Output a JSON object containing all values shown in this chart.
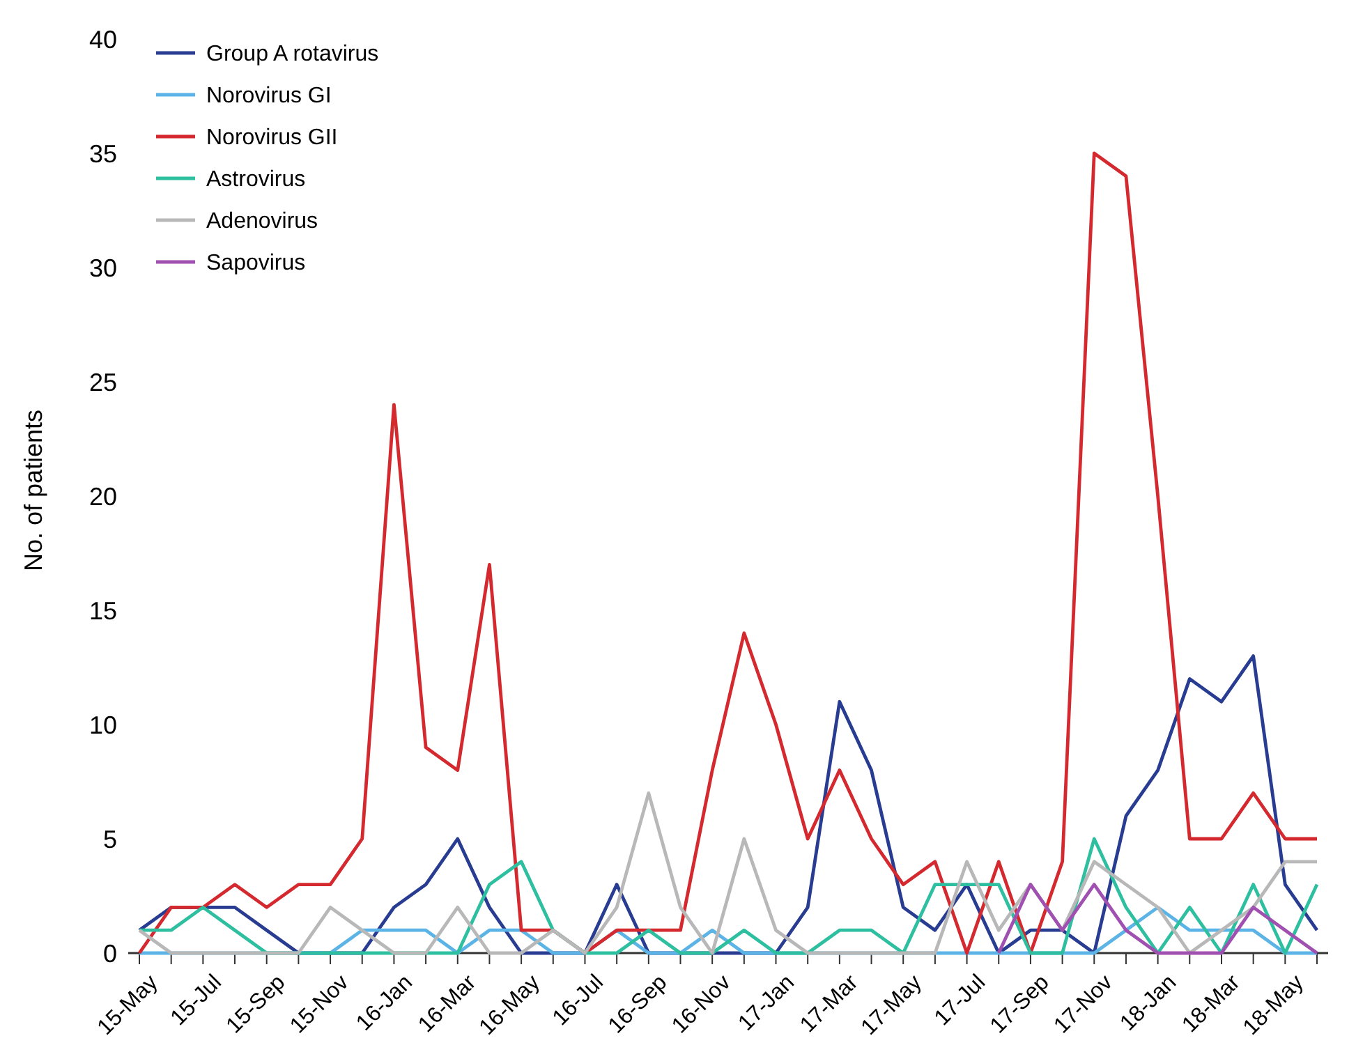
{
  "chart_data": {
    "type": "line",
    "ylabel": "No. of patients",
    "categories": [
      "15-May",
      null,
      "15-Jul",
      null,
      "15-Sep",
      null,
      "15-Nov",
      null,
      "16-Jan",
      null,
      "16-Mar",
      null,
      "16-May",
      null,
      "16-Jul",
      null,
      "16-Sep",
      null,
      "16-Nov",
      null,
      "17-Jan",
      null,
      "17-Mar",
      null,
      "17-May",
      null,
      "17-Jul",
      null,
      "17-Sep",
      null,
      "17-Nov",
      null,
      "18-Jan",
      null,
      "18-Mar",
      null,
      "18-May",
      null
    ],
    "ylim": [
      0,
      40
    ],
    "yticks": [
      0,
      5,
      10,
      15,
      20,
      25,
      30,
      35,
      40
    ],
    "grid": false,
    "legend": "top left",
    "marker": "none",
    "line_style": "solid",
    "series": [
      {
        "name": "Group A rotavirus",
        "color": "#283c91",
        "values": [
          1,
          2,
          2,
          2,
          1,
          0,
          0,
          0,
          2,
          3,
          5,
          2,
          0,
          0,
          0,
          3,
          0,
          0,
          0,
          0,
          0,
          2,
          11,
          8,
          2,
          1,
          3,
          0,
          1,
          1,
          0,
          6,
          8,
          12,
          11,
          13,
          3,
          1
        ]
      },
      {
        "name": "Norovirus GI",
        "color": "#5bb4e5",
        "values": [
          0,
          0,
          0,
          0,
          0,
          0,
          0,
          1,
          1,
          1,
          0,
          1,
          1,
          0,
          0,
          1,
          0,
          0,
          1,
          0,
          0,
          0,
          0,
          0,
          0,
          0,
          0,
          0,
          0,
          0,
          0,
          1,
          2,
          1,
          1,
          1,
          0,
          0
        ]
      },
      {
        "name": "Norovirus GII",
        "color": "#d42a2f",
        "values": [
          0,
          2,
          2,
          3,
          2,
          3,
          3,
          5,
          24,
          9,
          8,
          17,
          1,
          1,
          0,
          1,
          1,
          1,
          8,
          14,
          10,
          5,
          8,
          5,
          3,
          4,
          0,
          4,
          0,
          4,
          35,
          34,
          20,
          5,
          5,
          7,
          5,
          5
        ]
      },
      {
        "name": "Astrovirus",
        "color": "#2dbf9f",
        "values": [
          1,
          1,
          2,
          1,
          0,
          0,
          0,
          0,
          0,
          0,
          0,
          3,
          4,
          1,
          0,
          0,
          1,
          0,
          0,
          1,
          0,
          0,
          1,
          1,
          0,
          3,
          3,
          3,
          0,
          0,
          5,
          2,
          0,
          2,
          0,
          3,
          0,
          3
        ]
      },
      {
        "name": "Adenovirus",
        "color": "#b8b8b8",
        "values": [
          1,
          0,
          0,
          0,
          0,
          0,
          2,
          1,
          0,
          0,
          2,
          0,
          0,
          1,
          0,
          2,
          7,
          2,
          0,
          5,
          1,
          0,
          0,
          0,
          0,
          0,
          4,
          1,
          3,
          1,
          4,
          3,
          2,
          0,
          1,
          2,
          4,
          4
        ]
      },
      {
        "name": "Sapovirus",
        "color": "#a050b0",
        "values": [
          null,
          null,
          null,
          null,
          null,
          null,
          null,
          null,
          null,
          null,
          null,
          null,
          null,
          null,
          null,
          null,
          null,
          null,
          null,
          null,
          null,
          null,
          null,
          null,
          null,
          null,
          null,
          0,
          3,
          1,
          3,
          1,
          0,
          0,
          0,
          2,
          1,
          0
        ]
      }
    ]
  }
}
